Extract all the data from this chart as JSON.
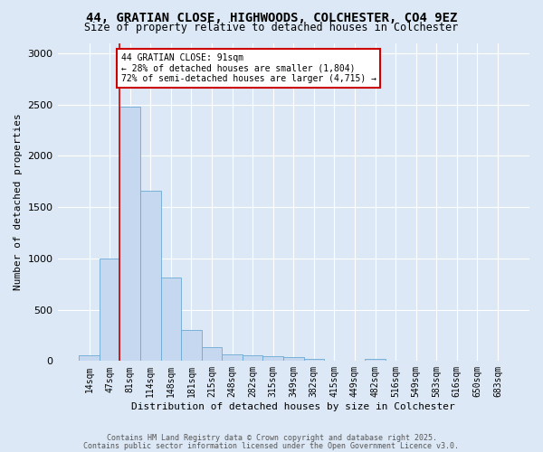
{
  "title_line1": "44, GRATIAN CLOSE, HIGHWOODS, COLCHESTER, CO4 9EZ",
  "title_line2": "Size of property relative to detached houses in Colchester",
  "xlabel": "Distribution of detached houses by size in Colchester",
  "ylabel": "Number of detached properties",
  "bar_labels": [
    "14sqm",
    "47sqm",
    "81sqm",
    "114sqm",
    "148sqm",
    "181sqm",
    "215sqm",
    "248sqm",
    "282sqm",
    "315sqm",
    "349sqm",
    "382sqm",
    "415sqm",
    "449sqm",
    "482sqm",
    "516sqm",
    "549sqm",
    "583sqm",
    "616sqm",
    "650sqm",
    "683sqm"
  ],
  "bar_values": [
    55,
    1000,
    2475,
    1660,
    810,
    305,
    135,
    65,
    60,
    48,
    35,
    18,
    5,
    0,
    22,
    0,
    0,
    0,
    0,
    0,
    0
  ],
  "bar_color": "#c5d8ef",
  "bar_edgecolor": "#6aaad4",
  "vline_index": 2,
  "vline_color": "#cc0000",
  "annotation_text": "44 GRATIAN CLOSE: 91sqm\n← 28% of detached houses are smaller (1,804)\n72% of semi-detached houses are larger (4,715) →",
  "annotation_box_edgecolor": "#cc0000",
  "annotation_box_facecolor": "white",
  "ylim": [
    0,
    3100
  ],
  "yticks": [
    0,
    500,
    1000,
    1500,
    2000,
    2500,
    3000
  ],
  "footnote_line1": "Contains HM Land Registry data © Crown copyright and database right 2025.",
  "footnote_line2": "Contains public sector information licensed under the Open Government Licence v3.0.",
  "background_color": "#dce8f5",
  "plot_bg_color": "#dce8f5",
  "grid_color": "white",
  "title_fontsize": 10,
  "subtitle_fontsize": 8.5,
  "xlabel_fontsize": 8,
  "ylabel_fontsize": 8,
  "tick_fontsize": 7,
  "annotation_fontsize": 7,
  "footnote_fontsize": 6
}
